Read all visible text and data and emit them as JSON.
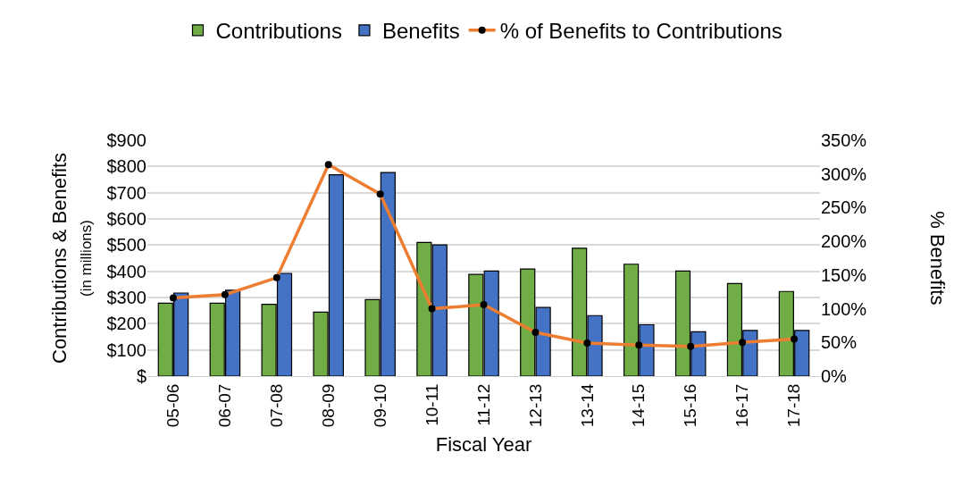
{
  "chart_data": {
    "type": "bar",
    "xlabel": "Fiscal Year",
    "ylabel": "Contributions & Benefits\n(in millions)",
    "y2label": "% Benefits",
    "categories": [
      "05-06",
      "06-07",
      "07-08",
      "08-09",
      "09-10",
      "10-11",
      "11-12",
      "12-13",
      "13-14",
      "14-15",
      "15-16",
      "16-17",
      "17-18"
    ],
    "series": [
      {
        "name": "Contributions",
        "color": "#70ad47",
        "values": [
          278,
          278,
          274,
          244,
          292,
          510,
          388,
          409,
          488,
          427,
          401,
          353,
          323
        ]
      },
      {
        "name": "Benefits",
        "color": "#4472c4",
        "values": [
          317,
          328,
          392,
          768,
          777,
          501,
          401,
          262,
          231,
          196,
          169,
          174,
          174
        ]
      },
      {
        "name": "% of Benefits to Contributions",
        "type": "line",
        "axis": "y2",
        "color": "#ed7d31",
        "marker": "circle",
        "values": [
          116,
          121,
          146,
          314,
          270,
          100,
          106,
          65,
          49,
          46,
          44,
          50,
          55
        ]
      }
    ],
    "ylim": [
      0,
      900
    ],
    "yticks": [
      {
        "value": 0,
        "label": "$"
      },
      {
        "value": 100,
        "label": "$100"
      },
      {
        "value": 200,
        "label": "$200"
      },
      {
        "value": 300,
        "label": "$300"
      },
      {
        "value": 400,
        "label": "$400"
      },
      {
        "value": 500,
        "label": "$500"
      },
      {
        "value": 600,
        "label": "$600"
      },
      {
        "value": 700,
        "label": "$700"
      },
      {
        "value": 800,
        "label": "$800"
      },
      {
        "value": 900,
        "label": "$900"
      }
    ],
    "y2lim": [
      0,
      350
    ],
    "y2ticks": [
      {
        "value": 0,
        "label": "0%"
      },
      {
        "value": 50,
        "label": "50%"
      },
      {
        "value": 100,
        "label": "100%"
      },
      {
        "value": 150,
        "label": "150%"
      },
      {
        "value": 200,
        "label": "200%"
      },
      {
        "value": 250,
        "label": "250%"
      },
      {
        "value": 300,
        "label": "300%"
      },
      {
        "value": 350,
        "label": "350%"
      }
    ],
    "grid": "y",
    "legend": "top"
  }
}
